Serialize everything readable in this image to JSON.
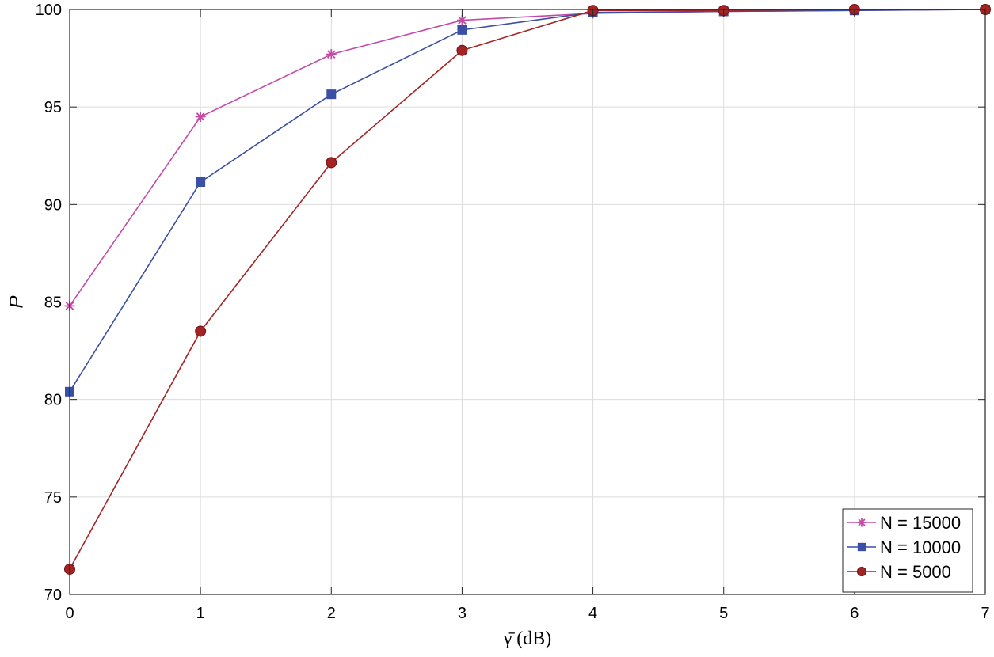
{
  "chart_data": {
    "type": "line",
    "title": "",
    "xlabel": "γ̄ (dB)",
    "ylabel": "P",
    "xlim": [
      0,
      7
    ],
    "ylim": [
      70,
      100
    ],
    "xticks": [
      0,
      1,
      2,
      3,
      4,
      5,
      6,
      7
    ],
    "yticks": [
      70,
      75,
      80,
      85,
      90,
      95,
      100
    ],
    "grid": true,
    "legend_position": "bottom-right",
    "x": [
      0,
      1,
      2,
      3,
      4,
      5,
      6,
      7
    ],
    "series": [
      {
        "name": "N = 15000",
        "color": "#C44AA6",
        "marker": "asterisk",
        "values": [
          84.8,
          94.5,
          97.7,
          99.45,
          99.8,
          99.9,
          99.95,
          100
        ]
      },
      {
        "name": "N = 10000",
        "color": "#3A4FA6",
        "marker": "square",
        "values": [
          80.4,
          91.15,
          95.65,
          98.95,
          99.85,
          99.9,
          99.95,
          100
        ]
      },
      {
        "name": "N = 5000",
        "color": "#A32424",
        "marker": "circle",
        "values": [
          71.3,
          83.5,
          92.15,
          97.9,
          99.95,
          99.95,
          100,
          100
        ]
      }
    ]
  }
}
